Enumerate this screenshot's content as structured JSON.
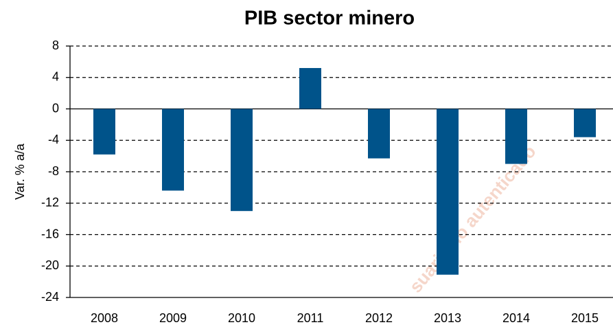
{
  "chart_data": {
    "type": "bar",
    "title": "PIB sector minero",
    "y_label": "Var. % a/a",
    "categories": [
      "2008",
      "2009",
      "2010",
      "2011",
      "2012",
      "2013",
      "2014",
      "2015"
    ],
    "values": [
      -5.8,
      -10.4,
      -13.0,
      5.2,
      -6.3,
      -21.1,
      -7.0,
      -3.6
    ],
    "color": "#00538a",
    "ylim": [
      -24,
      8
    ],
    "yticks": [
      -24,
      -20,
      -16,
      -12,
      -8,
      -4,
      0,
      4,
      8
    ],
    "grid": true,
    "watermark": "suario no autenticado"
  }
}
